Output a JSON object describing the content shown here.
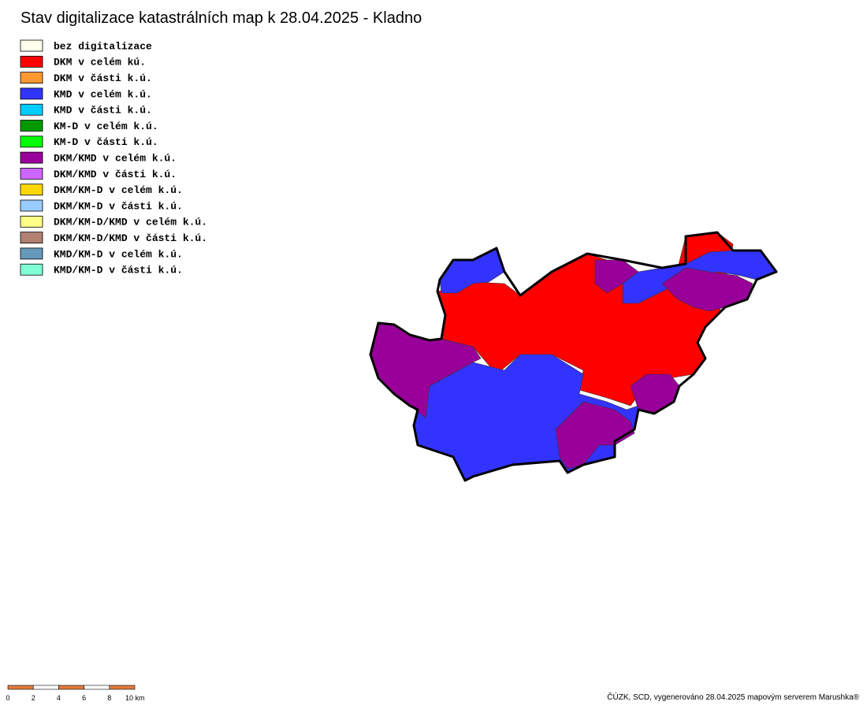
{
  "title": "Stav digitalizace katastrálních map k 28.04.2025 - Kladno",
  "legend": [
    {
      "label": "bez digitalizace",
      "color": "#ffffee"
    },
    {
      "label": "DKM v celém kú.",
      "color": "#ff0000"
    },
    {
      "label": "DKM v části k.ú.",
      "color": "#ff9933"
    },
    {
      "label": "KMD v celém k.ú.",
      "color": "#3333ff"
    },
    {
      "label": "KMD v části k.ú.",
      "color": "#00ccff"
    },
    {
      "label": "KM-D v celém k.ú.",
      "color": "#009900"
    },
    {
      "label": "KM-D v části k.ú.",
      "color": "#00ff00"
    },
    {
      "label": "DKM/KMD v celém k.ú.",
      "color": "#990099"
    },
    {
      "label": "DKM/KMD v části k.ú.",
      "color": "#cc66ff"
    },
    {
      "label": "DKM/KM-D v celém k.ú.",
      "color": "#ffd700"
    },
    {
      "label": "DKM/KM-D v části k.ú.",
      "color": "#99ccff"
    },
    {
      "label": "DKM/KM-D/KMD v celém k.ú.",
      "color": "#ffff88"
    },
    {
      "label": "DKM/KM-D/KMD v části k.ú.",
      "color": "#b08070"
    },
    {
      "label": "KMD/KM-D v celém k.ú.",
      "color": "#6699bb"
    },
    {
      "label": "KMD/KM-D v části k.ú.",
      "color": "#80ffd4"
    }
  ],
  "scale_labels": [
    "0",
    "2",
    "4",
    "6",
    "8",
    "10 km"
  ],
  "credit": "ČÚZK, SCD, vygenerováno 28.04.2025 mapovým serverem Marushka®"
}
